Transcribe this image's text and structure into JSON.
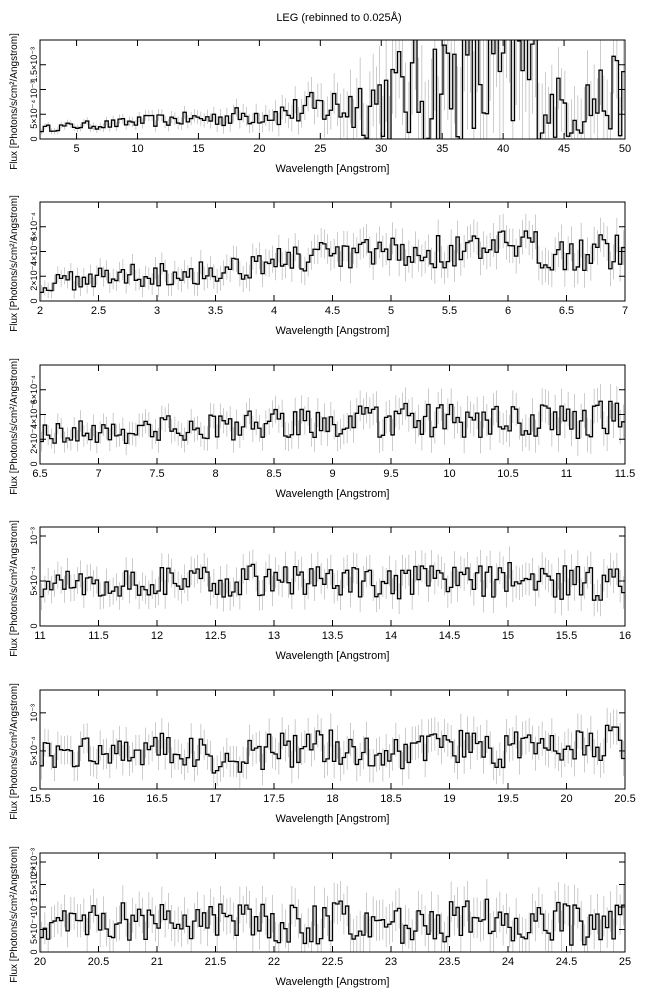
{
  "figure": {
    "title": "LEG (rebinned to 0.025Å)"
  },
  "chart_data": [
    {
      "type": "line",
      "style": "step",
      "xlabel": "Wavelength [Angstrom]",
      "ylabel": "Flux [Photons/s/cm²/Angstrom]",
      "xlim": [
        2,
        50
      ],
      "ylim": [
        0,
        0.002
      ],
      "xticks": [
        5,
        10,
        15,
        20,
        25,
        30,
        35,
        40,
        45,
        50
      ],
      "yticks": [
        0,
        0.0005,
        0.001,
        0.0015
      ],
      "ytick_labels": [
        "0",
        "5×10⁻⁴",
        "10⁻³",
        "1.5×10⁻³"
      ],
      "series": [
        {
          "x": [
            2,
            4,
            6,
            8,
            10,
            12,
            14,
            16,
            18,
            20,
            22,
            24,
            26,
            28,
            30,
            32,
            34,
            36,
            38,
            40,
            42,
            44,
            46,
            48,
            50
          ],
          "y": [
            0.0002,
            0.00025,
            0.00028,
            0.0003,
            0.00035,
            0.00038,
            0.0004,
            0.00042,
            0.00045,
            0.0005,
            0.00052,
            0.0006,
            0.00065,
            0.0007,
            0.0008,
            0.0009,
            0.001,
            0.0011,
            0.0012,
            0.0013,
            0.0014,
            0.0006,
            0.0007,
            0.0008,
            0.0009
          ],
          "y_error": [
            6e-05,
            7e-05,
            8e-05,
            9e-05,
            0.0001,
            0.00012,
            0.00013,
            0.00015,
            0.00018,
            0.0002,
            0.00025,
            0.0003,
            0.0004,
            0.0006,
            0.0008,
            0.001,
            0.0012,
            0.0014,
            0.0016,
            0.0016,
            0.0016,
            0.0006,
            0.0007,
            0.0007,
            0.0008
          ]
        }
      ]
    },
    {
      "type": "line",
      "style": "step",
      "xlabel": "Wavelength [Angstrom]",
      "ylabel": "Flux [Photons/s/cm²/Angstrom]",
      "xlim": [
        2,
        7
      ],
      "ylim": [
        0,
        0.0008
      ],
      "xticks": [
        2,
        2.5,
        3,
        3.5,
        4,
        4.5,
        5,
        5.5,
        6,
        6.5,
        7
      ],
      "yticks": [
        0,
        0.0002,
        0.0004,
        0.0006
      ],
      "ytick_labels": [
        "0",
        "2×10⁻⁴",
        "4×10⁻⁴",
        "6×10⁻⁴"
      ],
      "series": [
        {
          "x": [
            2,
            2.5,
            3,
            3.5,
            4,
            4.5,
            5,
            5.5,
            6,
            6.5,
            7
          ],
          "y": [
            0.00012,
            0.0002,
            0.00022,
            0.00024,
            0.00033,
            0.00035,
            0.00038,
            0.0004,
            0.00042,
            0.0004,
            0.0004
          ],
          "y_error": [
            6e-05,
            8e-05,
            9e-05,
            0.0001,
            0.00011,
            0.00012,
            0.00013,
            0.00013,
            0.00014,
            0.00014,
            0.00014
          ]
        }
      ]
    },
    {
      "type": "line",
      "style": "step",
      "xlabel": "Wavelength [Angstrom]",
      "ylabel": "Flux [Photons/s/cm²/Angstrom]",
      "xlim": [
        6.5,
        11.5
      ],
      "ylim": [
        0,
        0.0008
      ],
      "xticks": [
        6.5,
        7,
        7.5,
        8,
        8.5,
        9,
        9.5,
        10,
        10.5,
        11,
        11.5
      ],
      "yticks": [
        0,
        0.0002,
        0.0004,
        0.0006
      ],
      "ytick_labels": [
        "0",
        "2×10⁻⁴",
        "4×10⁻⁴",
        "6×10⁻⁴"
      ],
      "series": [
        {
          "x": [
            6.5,
            7,
            7.5,
            8,
            8.5,
            9,
            9.5,
            10,
            10.5,
            11,
            11.5
          ],
          "y": [
            0.00025,
            0.00026,
            0.00028,
            0.0003,
            0.00032,
            0.00033,
            0.00035,
            0.00034,
            0.00033,
            0.00035,
            0.00036
          ],
          "y_error": [
            8e-05,
            9e-05,
            0.0001,
            0.0001,
            0.00011,
            0.00012,
            0.00013,
            0.00013,
            0.00013,
            0.00014,
            0.00014
          ]
        }
      ]
    },
    {
      "type": "line",
      "style": "step",
      "xlabel": "Wavelength [Angstrom]",
      "ylabel": "Flux [Photons/s/cm²/Angstrom]",
      "xlim": [
        11,
        16
      ],
      "ylim": [
        0,
        0.0011
      ],
      "xticks": [
        11,
        11.5,
        12,
        12.5,
        13,
        13.5,
        14,
        14.5,
        15,
        15.5,
        16
      ],
      "yticks": [
        0,
        0.0005,
        0.001
      ],
      "ytick_labels": [
        "0",
        "5×10⁻⁴",
        "10⁻³"
      ],
      "series": [
        {
          "x": [
            11,
            11.5,
            12,
            12.5,
            13,
            13.5,
            14,
            14.5,
            15,
            15.5,
            16
          ],
          "y": [
            0.00045,
            0.00048,
            0.0005,
            0.00048,
            0.00052,
            0.0005,
            0.00045,
            0.0005,
            0.00052,
            0.00048,
            0.00046
          ],
          "y_error": [
            0.00015,
            0.00015,
            0.00016,
            0.00016,
            0.00017,
            0.00017,
            0.00017,
            0.00018,
            0.00018,
            0.00018,
            0.00018
          ]
        }
      ]
    },
    {
      "type": "line",
      "style": "step",
      "xlabel": "Wavelength [Angstrom]",
      "ylabel": "Flux [Photons/s/cm²/Angstrom]",
      "xlim": [
        15.5,
        20.5
      ],
      "ylim": [
        0,
        0.0013
      ],
      "xticks": [
        15.5,
        16,
        16.5,
        17,
        17.5,
        18,
        18.5,
        19,
        19.5,
        20,
        20.5
      ],
      "yticks": [
        0,
        0.0005,
        0.001
      ],
      "ytick_labels": [
        "0",
        "5×10⁻⁴",
        "10⁻³"
      ],
      "series": [
        {
          "x": [
            15.5,
            16,
            16.5,
            17,
            17.5,
            18,
            18.5,
            19,
            19.5,
            20,
            20.5
          ],
          "y": [
            0.00045,
            0.0005,
            0.00055,
            0.0004,
            0.0005,
            0.00055,
            0.0005,
            0.00055,
            0.0005,
            0.00055,
            0.0006
          ],
          "y_error": [
            0.00018,
            0.0002,
            0.0002,
            0.0002,
            0.00021,
            0.00022,
            0.00022,
            0.00022,
            0.00022,
            0.00023,
            0.00023
          ]
        }
      ]
    },
    {
      "type": "line",
      "style": "step",
      "xlabel": "Wavelength [Angstrom]",
      "ylabel": "Flux [Photons/s/cm²/Angstrom]",
      "xlim": [
        20,
        25
      ],
      "ylim": [
        0,
        0.0022
      ],
      "xticks": [
        20,
        20.5,
        21,
        21.5,
        22,
        22.5,
        23,
        23.5,
        24,
        24.5,
        25
      ],
      "yticks": [
        0,
        0.0005,
        0.001,
        0.0015,
        0.002
      ],
      "ytick_labels": [
        "0",
        "5×10⁻⁴",
        "10⁻³",
        "1.5×10⁻³",
        "2×10⁻³"
      ],
      "series": [
        {
          "x": [
            20,
            20.5,
            21,
            21.5,
            22,
            22.5,
            23,
            23.5,
            24,
            24.5,
            25
          ],
          "y": [
            0.0006,
            0.0007,
            0.00065,
            0.0007,
            0.0006,
            0.00065,
            0.0006,
            0.00065,
            0.0007,
            0.00065,
            0.0006
          ],
          "y_error": [
            0.00035,
            0.00038,
            0.0004,
            0.0004,
            0.00042,
            0.00045,
            0.00045,
            0.00045,
            0.00045,
            0.00045,
            0.00045
          ]
        }
      ]
    }
  ]
}
